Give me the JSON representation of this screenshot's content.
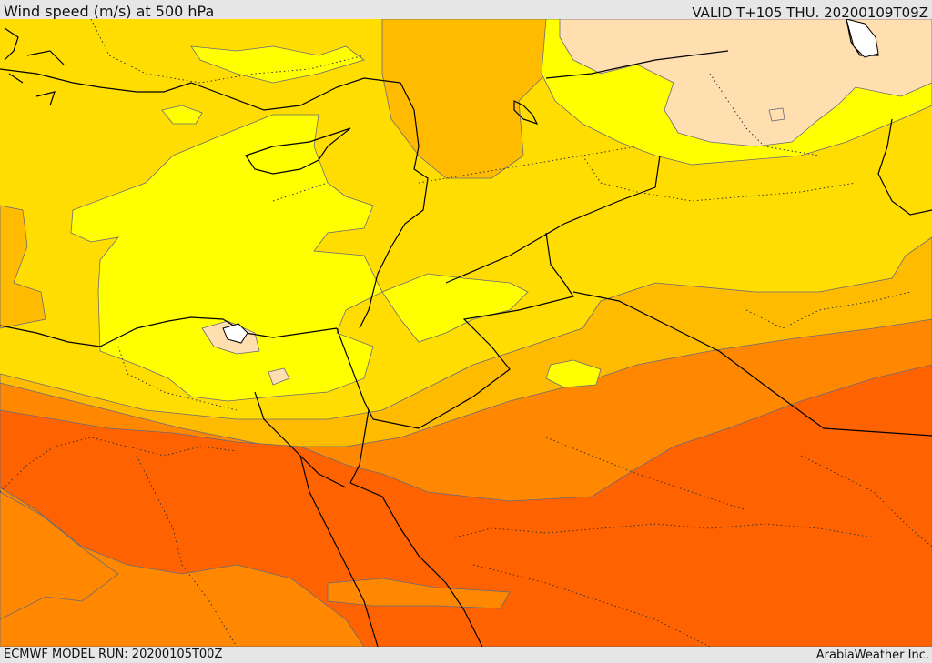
{
  "header": {
    "title": "Wind speed (m/s) at 500 hPa",
    "valid_time": "VALID T+105 THU. 20200109T09Z"
  },
  "footer": {
    "model_run": "ECMWF MODEL RUN: 20200105T00Z",
    "credit": "ArabiaWeather Inc."
  },
  "map": {
    "variable": "wind speed at 500 hPa",
    "units": "m/s",
    "colors": {
      "band_lowest": "#ffdfb0",
      "band_low": "#ffff00",
      "band_mid": "#ffdd00",
      "band_upper": "#ffbb00",
      "band_high": "#ff8800",
      "band_highest": "#ff6200",
      "contour_line": "#6a6a78",
      "coastline": "#000000",
      "border_dotted": "#333333"
    }
  }
}
